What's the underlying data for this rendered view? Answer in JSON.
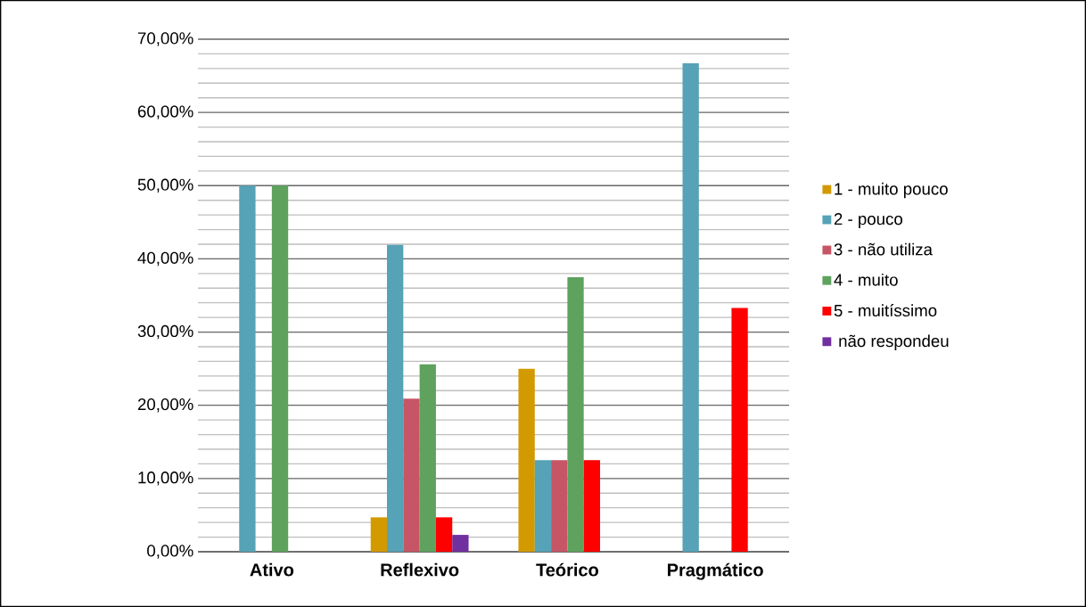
{
  "chart_data": {
    "type": "bar",
    "categories": [
      "Ativo",
      "Reflexivo",
      "Teórico",
      "Pragmático"
    ],
    "series": [
      {
        "name": "1 - muito pouco",
        "color": "#d39a00",
        "values": [
          null,
          4.7,
          25,
          null
        ]
      },
      {
        "name": "2 - pouco",
        "color": "#56a2b6",
        "values": [
          50,
          41.9,
          12.5,
          66.7
        ]
      },
      {
        "name": "3 - não utiliza",
        "color": "#c65666",
        "values": [
          null,
          20.9,
          12.5,
          null
        ]
      },
      {
        "name": "4 - muito",
        "color": "#5ea25e",
        "values": [
          50,
          25.6,
          37.5,
          null
        ]
      },
      {
        "name": "5 - muitíssimo",
        "color": "#ff0000",
        "values": [
          null,
          4.7,
          12.5,
          33.3
        ]
      },
      {
        "name": " não respondeu",
        "color": "#7030a0",
        "values": [
          null,
          2.3,
          null,
          null
        ]
      }
    ],
    "ylim": [
      0,
      70
    ],
    "yticks": [
      {
        "value": 0,
        "label": "0,00%"
      },
      {
        "value": 10,
        "label": "10,00%"
      },
      {
        "value": 20,
        "label": "20,00%"
      },
      {
        "value": 30,
        "label": "30,00%"
      },
      {
        "value": 40,
        "label": "40,00%"
      },
      {
        "value": 50,
        "label": "50,00%"
      },
      {
        "value": 60,
        "label": "60,00%"
      },
      {
        "value": 70,
        "label": "70,00%"
      }
    ],
    "grid": "y",
    "legend": "right"
  }
}
